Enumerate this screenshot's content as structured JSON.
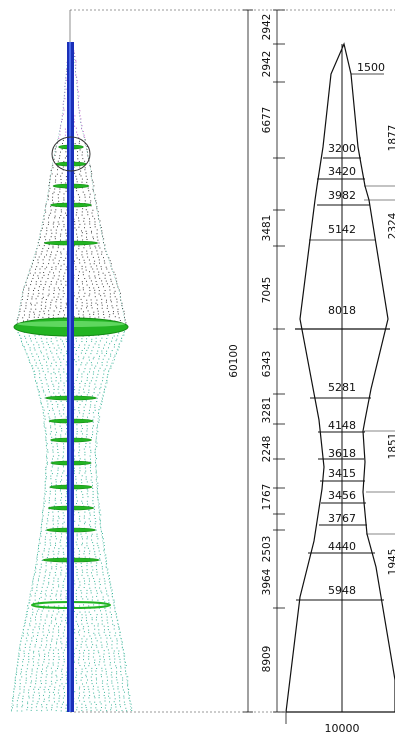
{
  "diagram": {
    "total_height_label": "60100",
    "base_width_label": "10000",
    "top_width_label": "1500",
    "segment_heights": [
      {
        "label": "2942"
      },
      {
        "label": "2942"
      },
      {
        "label": "6677"
      },
      {
        "label": "3481"
      },
      {
        "label": "7045"
      },
      {
        "label": "6343"
      },
      {
        "label": "3281"
      },
      {
        "label": "2248"
      },
      {
        "label": "1767"
      },
      {
        "label": "2503"
      },
      {
        "label": "3964"
      },
      {
        "label": "8909"
      }
    ],
    "ring_widths": [
      {
        "label": "3200"
      },
      {
        "label": "3420"
      },
      {
        "label": "3982"
      },
      {
        "label": "5142"
      },
      {
        "label": "8018"
      },
      {
        "label": "5281"
      },
      {
        "label": "4148"
      },
      {
        "label": "3618"
      },
      {
        "label": "3415"
      },
      {
        "label": "3456"
      },
      {
        "label": "3767"
      },
      {
        "label": "4440"
      },
      {
        "label": "5948"
      }
    ],
    "right_edge_labels": [
      {
        "label": "1877"
      },
      {
        "label": "2324"
      },
      {
        "label": "1851"
      },
      {
        "label": "1945"
      }
    ]
  },
  "colors": {
    "mast": "#1a2fb8",
    "ring": "#22b422",
    "mesh_top": "#b040c0",
    "mesh_mid": "#222222",
    "mesh_bottom": "#1aa888",
    "line": "#111111"
  }
}
